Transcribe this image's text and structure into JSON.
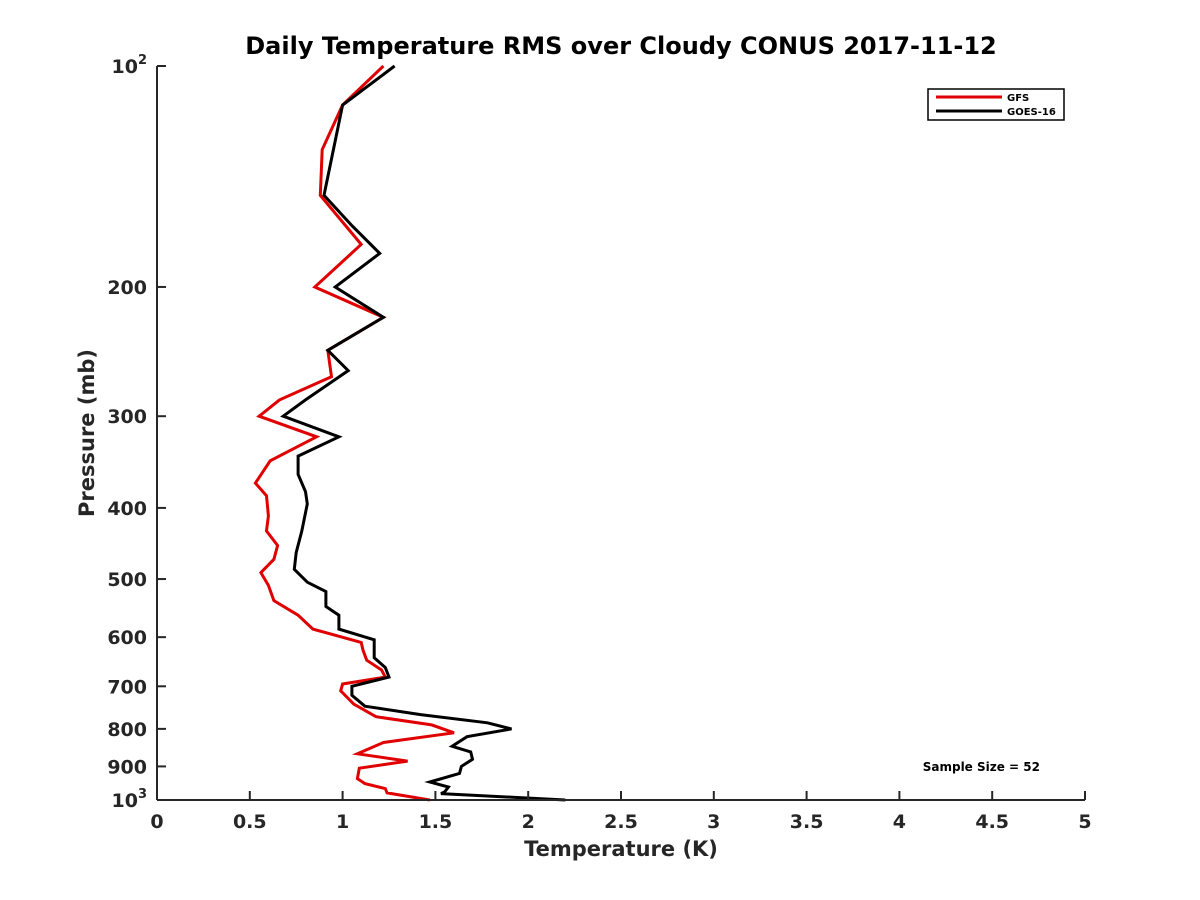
{
  "chart_data": {
    "type": "line",
    "title": "Daily Temperature RMS over Cloudy CONUS 2017-11-12",
    "xlabel": "Temperature (K)",
    "ylabel": "Pressure (mb)",
    "xlim": [
      0,
      5
    ],
    "ylim": [
      100,
      1000
    ],
    "y_scale": "log",
    "y_reversed": true,
    "grid": false,
    "legend_position": "top-right",
    "x_ticks": [
      "0",
      "0.5",
      "1",
      "1.5",
      "2",
      "2.5",
      "3",
      "3.5",
      "4",
      "4.5",
      "5"
    ],
    "y_ticks": [
      {
        "value": 100,
        "base": "10",
        "exp": "2",
        "label": ""
      },
      {
        "value": 200,
        "base": "",
        "exp": "",
        "label": "200"
      },
      {
        "value": 300,
        "base": "",
        "exp": "",
        "label": "300"
      },
      {
        "value": 400,
        "base": "",
        "exp": "",
        "label": "400"
      },
      {
        "value": 500,
        "base": "",
        "exp": "",
        "label": "500"
      },
      {
        "value": 600,
        "base": "",
        "exp": "",
        "label": "600"
      },
      {
        "value": 700,
        "base": "",
        "exp": "",
        "label": "700"
      },
      {
        "value": 800,
        "base": "",
        "exp": "",
        "label": "800"
      },
      {
        "value": 900,
        "base": "",
        "exp": "",
        "label": "900"
      },
      {
        "value": 1000,
        "base": "10",
        "exp": "3",
        "label": ""
      }
    ],
    "annotation": "Sample Size = 52",
    "series": [
      {
        "name": "GFS",
        "color": "#e00000",
        "points": [
          [
            1.22,
            100
          ],
          [
            1.0,
            113
          ],
          [
            0.89,
            130
          ],
          [
            0.88,
            150
          ],
          [
            1.1,
            175
          ],
          [
            0.85,
            200
          ],
          [
            1.22,
            220
          ],
          [
            0.92,
            244
          ],
          [
            0.94,
            265
          ],
          [
            0.66,
            285
          ],
          [
            0.55,
            300
          ],
          [
            0.86,
            320
          ],
          [
            0.61,
            345
          ],
          [
            0.53,
            370
          ],
          [
            0.59,
            385
          ],
          [
            0.6,
            410
          ],
          [
            0.59,
            430
          ],
          [
            0.65,
            450
          ],
          [
            0.63,
            470
          ],
          [
            0.56,
            490
          ],
          [
            0.6,
            510
          ],
          [
            0.63,
            535
          ],
          [
            0.76,
            560
          ],
          [
            0.84,
            585
          ],
          [
            1.1,
            610
          ],
          [
            1.11,
            625
          ],
          [
            1.13,
            645
          ],
          [
            1.21,
            665
          ],
          [
            1.23,
            680
          ],
          [
            1.0,
            695
          ],
          [
            0.99,
            710
          ],
          [
            1.06,
            740
          ],
          [
            1.18,
            770
          ],
          [
            1.48,
            790
          ],
          [
            1.6,
            810
          ],
          [
            1.22,
            835
          ],
          [
            1.08,
            865
          ],
          [
            1.35,
            885
          ],
          [
            1.09,
            905
          ],
          [
            1.08,
            935
          ],
          [
            1.12,
            950
          ],
          [
            1.23,
            965
          ],
          [
            1.24,
            978
          ],
          [
            1.47,
            1000
          ]
        ]
      },
      {
        "name": "GOES-16",
        "color": "#000000",
        "points": [
          [
            1.28,
            100
          ],
          [
            1.0,
            113
          ],
          [
            0.9,
            150
          ],
          [
            1.05,
            165
          ],
          [
            1.2,
            180
          ],
          [
            0.96,
            200
          ],
          [
            1.22,
            220
          ],
          [
            0.92,
            244
          ],
          [
            1.03,
            260
          ],
          [
            0.8,
            285
          ],
          [
            0.68,
            300
          ],
          [
            0.98,
            320
          ],
          [
            0.76,
            340
          ],
          [
            0.76,
            360
          ],
          [
            0.8,
            380
          ],
          [
            0.81,
            395
          ],
          [
            0.78,
            430
          ],
          [
            0.75,
            460
          ],
          [
            0.74,
            485
          ],
          [
            0.81,
            505
          ],
          [
            0.91,
            520
          ],
          [
            0.91,
            545
          ],
          [
            0.98,
            560
          ],
          [
            0.98,
            585
          ],
          [
            1.17,
            605
          ],
          [
            1.17,
            640
          ],
          [
            1.23,
            660
          ],
          [
            1.25,
            680
          ],
          [
            1.05,
            700
          ],
          [
            1.05,
            720
          ],
          [
            1.12,
            745
          ],
          [
            1.42,
            765
          ],
          [
            1.78,
            785
          ],
          [
            1.91,
            800
          ],
          [
            1.67,
            820
          ],
          [
            1.59,
            845
          ],
          [
            1.69,
            860
          ],
          [
            1.7,
            880
          ],
          [
            1.64,
            900
          ],
          [
            1.63,
            920
          ],
          [
            1.47,
            945
          ],
          [
            1.57,
            960
          ],
          [
            1.55,
            975
          ],
          [
            1.53,
            980
          ],
          [
            2.2,
            1000
          ]
        ]
      }
    ]
  }
}
